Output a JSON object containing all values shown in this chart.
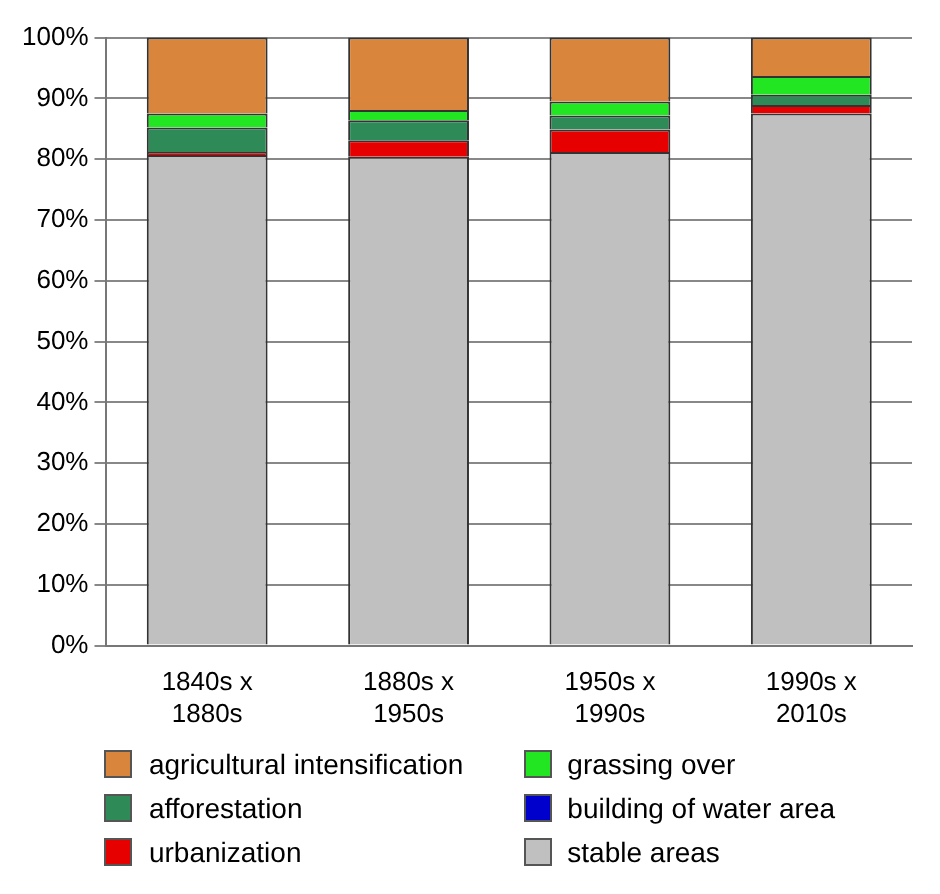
{
  "chart_data": {
    "type": "bar",
    "stacked": true,
    "categories": [
      "1840s x\n1880s",
      "1880s x\n1950s",
      "1950s x\n1990s",
      "1990s x\n2010s"
    ],
    "series": [
      {
        "name": "stable areas",
        "color": "#c0c0c0",
        "values": [
          80.7,
          80.4,
          81.2,
          87.5
        ]
      },
      {
        "name": "urbanization",
        "color": "#e60000",
        "values": [
          0.5,
          2.7,
          3.7,
          1.4
        ]
      },
      {
        "name": "building of water area",
        "color": "#0000cc",
        "values": [
          0,
          0,
          0,
          0
        ]
      },
      {
        "name": "afforestation",
        "color": "#2e8b57",
        "values": [
          4.0,
          3.3,
          2.3,
          1.7
        ]
      },
      {
        "name": "grassing over",
        "color": "#22e622",
        "values": [
          2.3,
          1.7,
          2.3,
          3.1
        ]
      },
      {
        "name": "agricultural intensification",
        "color": "#d9853b",
        "values": [
          12.5,
          11.9,
          10.5,
          6.3
        ]
      }
    ],
    "ylim": [
      0,
      100
    ],
    "yticks": [
      {
        "value": 0,
        "label": "0%"
      },
      {
        "value": 10,
        "label": "10%"
      },
      {
        "value": 20,
        "label": "20%"
      },
      {
        "value": 30,
        "label": "30%"
      },
      {
        "value": 40,
        "label": "40%"
      },
      {
        "value": 50,
        "label": "50%"
      },
      {
        "value": 60,
        "label": "60%"
      },
      {
        "value": 70,
        "label": "70%"
      },
      {
        "value": 80,
        "label": "80%"
      },
      {
        "value": 90,
        "label": "90%"
      },
      {
        "value": 100,
        "label": "100%"
      }
    ],
    "grid": "y",
    "legend": "bottom"
  }
}
